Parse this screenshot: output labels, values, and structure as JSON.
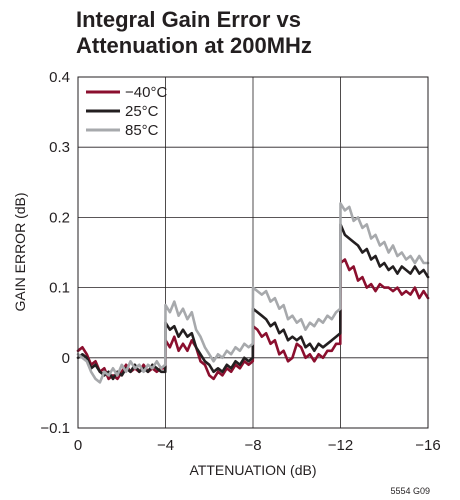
{
  "chart_data": {
    "type": "line",
    "title_lines": [
      "Integral Gain Error vs",
      "Attenuation at 200MHz"
    ],
    "xlabel": "ATTENUATION (dB)",
    "ylabel": "GAIN ERROR (dB)",
    "xlim": [
      0,
      -16
    ],
    "ylim": [
      -0.1,
      0.4
    ],
    "x_ticks": [
      0,
      -4,
      -8,
      -12,
      -16
    ],
    "x_tick_labels": [
      "0",
      "−4",
      "−8",
      "−12",
      "−16"
    ],
    "y_ticks": [
      -0.1,
      0,
      0.1,
      0.2,
      0.3,
      0.4
    ],
    "y_tick_labels": [
      "−0.1",
      "0",
      "0.1",
      "0.2",
      "0.3",
      "0.4"
    ],
    "grid": true,
    "legend_position": "top-left",
    "figure_note": "5554 G09",
    "series": [
      {
        "name": "−40°C",
        "color": "#8b0f2e",
        "points": [
          [
            0,
            0.01
          ],
          [
            -0.2,
            0.015
          ],
          [
            -0.4,
            0.005
          ],
          [
            -0.6,
            -0.01
          ],
          [
            -0.8,
            -0.005
          ],
          [
            -1,
            -0.02
          ],
          [
            -1.2,
            -0.015
          ],
          [
            -1.4,
            -0.03
          ],
          [
            -1.6,
            -0.025
          ],
          [
            -1.8,
            -0.03
          ],
          [
            -2,
            -0.02
          ],
          [
            -2.2,
            -0.01
          ],
          [
            -2.4,
            -0.02
          ],
          [
            -2.6,
            -0.015
          ],
          [
            -2.8,
            -0.02
          ],
          [
            -3,
            -0.01
          ],
          [
            -3.2,
            -0.02
          ],
          [
            -3.4,
            -0.015
          ],
          [
            -3.6,
            -0.02
          ],
          [
            -3.8,
            -0.015
          ],
          [
            -3.99,
            -0.015
          ],
          [
            -4,
            0.025
          ],
          [
            -4.2,
            0.015
          ],
          [
            -4.4,
            0.03
          ],
          [
            -4.6,
            0.01
          ],
          [
            -4.8,
            0.02
          ],
          [
            -5,
            0.01
          ],
          [
            -5.2,
            0.025
          ],
          [
            -5.4,
            0.015
          ],
          [
            -5.6,
            -0.005
          ],
          [
            -5.8,
            -0.01
          ],
          [
            -6,
            -0.025
          ],
          [
            -6.2,
            -0.03
          ],
          [
            -6.4,
            -0.02
          ],
          [
            -6.6,
            -0.025
          ],
          [
            -6.8,
            -0.015
          ],
          [
            -7,
            -0.02
          ],
          [
            -7.2,
            -0.01
          ],
          [
            -7.4,
            -0.015
          ],
          [
            -7.6,
            -0.005
          ],
          [
            -7.8,
            -0.01
          ],
          [
            -7.99,
            -0.005
          ],
          [
            -8,
            0.045
          ],
          [
            -8.2,
            0.04
          ],
          [
            -8.4,
            0.03
          ],
          [
            -8.6,
            0.035
          ],
          [
            -8.8,
            0.02
          ],
          [
            -9,
            0.025
          ],
          [
            -9.2,
            0.005
          ],
          [
            -9.4,
            0.01
          ],
          [
            -9.6,
            -0.005
          ],
          [
            -9.8,
            0
          ],
          [
            -10,
            0.02
          ],
          [
            -10.2,
            0.015
          ],
          [
            -10.4,
            0
          ],
          [
            -10.6,
            0.005
          ],
          [
            -10.8,
            -0.005
          ],
          [
            -11,
            0.005
          ],
          [
            -11.2,
            0
          ],
          [
            -11.4,
            0.01
          ],
          [
            -11.6,
            0.01
          ],
          [
            -11.8,
            0.02
          ],
          [
            -11.99,
            0.02
          ],
          [
            -12,
            0.135
          ],
          [
            -12.2,
            0.14
          ],
          [
            -12.4,
            0.125
          ],
          [
            -12.6,
            0.13
          ],
          [
            -12.8,
            0.11
          ],
          [
            -13,
            0.115
          ],
          [
            -13.2,
            0.1
          ],
          [
            -13.4,
            0.105
          ],
          [
            -13.6,
            0.095
          ],
          [
            -13.8,
            0.105
          ],
          [
            -14,
            0.1
          ],
          [
            -14.2,
            0.1
          ],
          [
            -14.4,
            0.095
          ],
          [
            -14.6,
            0.1
          ],
          [
            -14.8,
            0.09
          ],
          [
            -15,
            0.095
          ],
          [
            -15.2,
            0.09
          ],
          [
            -15.4,
            0.1
          ],
          [
            -15.6,
            0.085
          ],
          [
            -15.8,
            0.095
          ],
          [
            -16,
            0.085
          ]
        ]
      },
      {
        "name": "25°C",
        "color": "#231f20",
        "points": [
          [
            0,
            0
          ],
          [
            -0.2,
            0.005
          ],
          [
            -0.4,
            0
          ],
          [
            -0.6,
            -0.015
          ],
          [
            -0.8,
            -0.01
          ],
          [
            -1,
            -0.02
          ],
          [
            -1.2,
            -0.025
          ],
          [
            -1.4,
            -0.02
          ],
          [
            -1.6,
            -0.03
          ],
          [
            -1.8,
            -0.02
          ],
          [
            -2,
            -0.025
          ],
          [
            -2.2,
            -0.015
          ],
          [
            -2.4,
            -0.02
          ],
          [
            -2.6,
            -0.01
          ],
          [
            -2.8,
            -0.02
          ],
          [
            -3,
            -0.015
          ],
          [
            -3.2,
            -0.02
          ],
          [
            -3.4,
            -0.01
          ],
          [
            -3.6,
            -0.015
          ],
          [
            -3.8,
            -0.02
          ],
          [
            -3.99,
            -0.02
          ],
          [
            -4,
            0.05
          ],
          [
            -4.2,
            0.04
          ],
          [
            -4.4,
            0.045
          ],
          [
            -4.6,
            0.03
          ],
          [
            -4.8,
            0.04
          ],
          [
            -5,
            0.03
          ],
          [
            -5.2,
            0.035
          ],
          [
            -5.4,
            0.015
          ],
          [
            -5.6,
            0.005
          ],
          [
            -5.8,
            -0.005
          ],
          [
            -6,
            -0.01
          ],
          [
            -6.2,
            -0.02
          ],
          [
            -6.4,
            -0.015
          ],
          [
            -6.6,
            -0.02
          ],
          [
            -6.8,
            -0.01
          ],
          [
            -7,
            -0.015
          ],
          [
            -7.2,
            -0.005
          ],
          [
            -7.4,
            -0.01
          ],
          [
            -7.6,
            0
          ],
          [
            -7.8,
            -0.005
          ],
          [
            -7.99,
            0
          ],
          [
            -8,
            0.07
          ],
          [
            -8.2,
            0.065
          ],
          [
            -8.4,
            0.06
          ],
          [
            -8.6,
            0.055
          ],
          [
            -8.8,
            0.045
          ],
          [
            -9,
            0.05
          ],
          [
            -9.2,
            0.035
          ],
          [
            -9.4,
            0.04
          ],
          [
            -9.6,
            0.025
          ],
          [
            -9.8,
            0.03
          ],
          [
            -10,
            0.025
          ],
          [
            -10.2,
            0.03
          ],
          [
            -10.4,
            0.015
          ],
          [
            -10.6,
            0.02
          ],
          [
            -10.8,
            0.01
          ],
          [
            -11,
            0.02
          ],
          [
            -11.2,
            0.015
          ],
          [
            -11.4,
            0.02
          ],
          [
            -11.6,
            0.025
          ],
          [
            -11.8,
            0.03
          ],
          [
            -11.99,
            0.035
          ],
          [
            -12,
            0.19
          ],
          [
            -12.2,
            0.175
          ],
          [
            -12.4,
            0.17
          ],
          [
            -12.6,
            0.165
          ],
          [
            -12.8,
            0.16
          ],
          [
            -13,
            0.15
          ],
          [
            -13.2,
            0.155
          ],
          [
            -13.4,
            0.14
          ],
          [
            -13.6,
            0.145
          ],
          [
            -13.8,
            0.13
          ],
          [
            -14,
            0.135
          ],
          [
            -14.2,
            0.125
          ],
          [
            -14.4,
            0.13
          ],
          [
            -14.6,
            0.12
          ],
          [
            -14.8,
            0.13
          ],
          [
            -15,
            0.125
          ],
          [
            -15.2,
            0.12
          ],
          [
            -15.4,
            0.13
          ],
          [
            -15.6,
            0.12
          ],
          [
            -15.8,
            0.125
          ],
          [
            -16,
            0.115
          ]
        ]
      },
      {
        "name": "85°C",
        "color": "#a7a9ac",
        "points": [
          [
            0,
            0.005
          ],
          [
            -0.2,
            0
          ],
          [
            -0.4,
            -0.005
          ],
          [
            -0.6,
            -0.02
          ],
          [
            -0.8,
            -0.03
          ],
          [
            -1,
            -0.035
          ],
          [
            -1.2,
            -0.02
          ],
          [
            -1.4,
            -0.025
          ],
          [
            -1.6,
            -0.015
          ],
          [
            -1.8,
            -0.025
          ],
          [
            -2,
            -0.01
          ],
          [
            -2.2,
            -0.02
          ],
          [
            -2.4,
            -0.005
          ],
          [
            -2.6,
            -0.015
          ],
          [
            -2.8,
            -0.01
          ],
          [
            -3,
            -0.02
          ],
          [
            -3.2,
            -0.01
          ],
          [
            -3.4,
            -0.015
          ],
          [
            -3.6,
            -0.005
          ],
          [
            -3.8,
            -0.015
          ],
          [
            -3.99,
            -0.01
          ],
          [
            -4,
            0.075
          ],
          [
            -4.2,
            0.065
          ],
          [
            -4.4,
            0.08
          ],
          [
            -4.6,
            0.06
          ],
          [
            -4.8,
            0.07
          ],
          [
            -5,
            0.055
          ],
          [
            -5.2,
            0.065
          ],
          [
            -5.4,
            0.04
          ],
          [
            -5.6,
            0.03
          ],
          [
            -5.8,
            0.015
          ],
          [
            -6,
            0.005
          ],
          [
            -6.2,
            -0.005
          ],
          [
            -6.4,
            0.005
          ],
          [
            -6.6,
            0
          ],
          [
            -6.8,
            0.01
          ],
          [
            -7,
            0.005
          ],
          [
            -7.2,
            0.015
          ],
          [
            -7.4,
            0.01
          ],
          [
            -7.6,
            0.02
          ],
          [
            -7.8,
            0.015
          ],
          [
            -7.99,
            0.02
          ],
          [
            -8,
            0.1
          ],
          [
            -8.2,
            0.095
          ],
          [
            -8.4,
            0.09
          ],
          [
            -8.6,
            0.095
          ],
          [
            -8.8,
            0.08
          ],
          [
            -9,
            0.085
          ],
          [
            -9.2,
            0.07
          ],
          [
            -9.4,
            0.075
          ],
          [
            -9.6,
            0.055
          ],
          [
            -9.8,
            0.06
          ],
          [
            -10,
            0.05
          ],
          [
            -10.2,
            0.055
          ],
          [
            -10.4,
            0.04
          ],
          [
            -10.6,
            0.05
          ],
          [
            -10.8,
            0.045
          ],
          [
            -11,
            0.055
          ],
          [
            -11.2,
            0.05
          ],
          [
            -11.4,
            0.06
          ],
          [
            -11.6,
            0.055
          ],
          [
            -11.8,
            0.065
          ],
          [
            -11.99,
            0.07
          ],
          [
            -12,
            0.22
          ],
          [
            -12.2,
            0.21
          ],
          [
            -12.4,
            0.215
          ],
          [
            -12.6,
            0.195
          ],
          [
            -12.8,
            0.2
          ],
          [
            -13,
            0.185
          ],
          [
            -13.2,
            0.19
          ],
          [
            -13.4,
            0.17
          ],
          [
            -13.6,
            0.175
          ],
          [
            -13.8,
            0.16
          ],
          [
            -14,
            0.165
          ],
          [
            -14.2,
            0.15
          ],
          [
            -14.4,
            0.16
          ],
          [
            -14.6,
            0.145
          ],
          [
            -14.8,
            0.15
          ],
          [
            -15,
            0.14
          ],
          [
            -15.2,
            0.145
          ],
          [
            -15.4,
            0.135
          ],
          [
            -15.6,
            0.145
          ],
          [
            -15.8,
            0.135
          ],
          [
            -16,
            0.135
          ]
        ]
      }
    ]
  }
}
